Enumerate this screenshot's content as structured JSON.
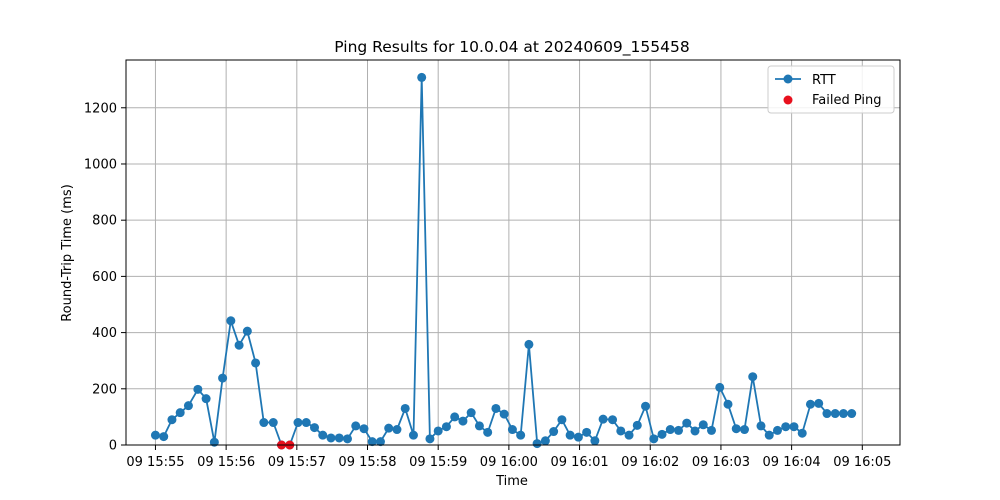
{
  "chart_data": {
    "type": "line",
    "title": "Ping Results for 10.0.04 at 20240609_155458",
    "xlabel": "Time",
    "ylabel": "Round-Trip Time (ms)",
    "ylim": [
      0,
      1370
    ],
    "xlim_seconds_from_1555": [
      -25,
      632
    ],
    "grid": true,
    "legend_position": "top-right",
    "x_ticks": [
      "09 15:55",
      "09 15:56",
      "09 15:57",
      "09 15:58",
      "09 15:59",
      "09 16:00",
      "09 16:01",
      "09 16:02",
      "09 16:03",
      "09 16:04",
      "09 16:05"
    ],
    "y_ticks": [
      0,
      200,
      400,
      600,
      800,
      1000,
      1200
    ],
    "colors": {
      "rtt": "#1f77b4",
      "failed": "#e8101d",
      "grid": "#b0b0b0"
    },
    "series": [
      {
        "name": "RTT",
        "x": [
          "15:55:00",
          "15:55:07",
          "15:55:14",
          "15:55:21",
          "15:55:28",
          "15:55:36",
          "15:55:43",
          "15:55:50",
          "15:55:57",
          "15:56:04",
          "15:56:11",
          "15:56:18",
          "15:56:25",
          "15:56:32",
          "15:56:40",
          "15:56:47",
          "15:56:54",
          "15:57:01",
          "15:57:08",
          "15:57:15",
          "15:57:22",
          "15:57:29",
          "15:57:36",
          "15:57:43",
          "15:57:50",
          "15:57:57",
          "15:58:04",
          "15:58:11",
          "15:58:18",
          "15:58:25",
          "15:58:32",
          "15:58:39",
          "15:58:46",
          "15:58:53",
          "15:59:00",
          "15:59:07",
          "15:59:14",
          "15:59:21",
          "15:59:28",
          "15:59:35",
          "15:59:42",
          "15:59:49",
          "15:59:56",
          "16:00:03",
          "16:00:10",
          "16:00:17",
          "16:00:24",
          "16:00:31",
          "16:00:38",
          "16:00:45",
          "16:00:52",
          "16:00:59",
          "16:01:06",
          "16:01:13",
          "16:01:20",
          "16:01:28",
          "16:01:35",
          "16:01:42",
          "16:01:49",
          "16:01:56",
          "16:02:03",
          "16:02:10",
          "16:02:17",
          "16:02:24",
          "16:02:31",
          "16:02:38",
          "16:02:45",
          "16:02:52",
          "16:02:59",
          "16:03:06",
          "16:03:13",
          "16:03:20",
          "16:03:27",
          "16:03:34",
          "16:03:41",
          "16:03:48",
          "16:03:55",
          "16:04:02",
          "16:04:09",
          "16:04:16",
          "16:04:23",
          "16:04:30",
          "16:04:37",
          "16:04:44",
          "16:04:51"
        ],
        "values": [
          35,
          30,
          90,
          115,
          140,
          198,
          165,
          10,
          238,
          442,
          355,
          405,
          292,
          80,
          80,
          0,
          0,
          80,
          80,
          62,
          35,
          25,
          25,
          22,
          68,
          58,
          12,
          12,
          60,
          55,
          130,
          35,
          1308,
          22,
          50,
          65,
          100,
          85,
          115,
          68,
          45,
          130,
          110,
          55,
          35,
          358,
          5,
          15,
          48,
          90,
          35,
          28,
          45,
          15,
          92,
          90,
          50,
          35,
          70,
          138,
          22,
          38,
          55,
          52,
          78,
          50,
          72,
          52,
          205,
          145,
          58,
          55,
          243,
          68,
          35,
          52,
          65,
          65,
          42,
          145,
          148,
          112,
          112,
          112,
          112
        ]
      },
      {
        "name": "Failed Ping",
        "x": [
          "15:56:47",
          "15:56:54"
        ],
        "values": [
          0,
          0
        ]
      }
    ]
  }
}
